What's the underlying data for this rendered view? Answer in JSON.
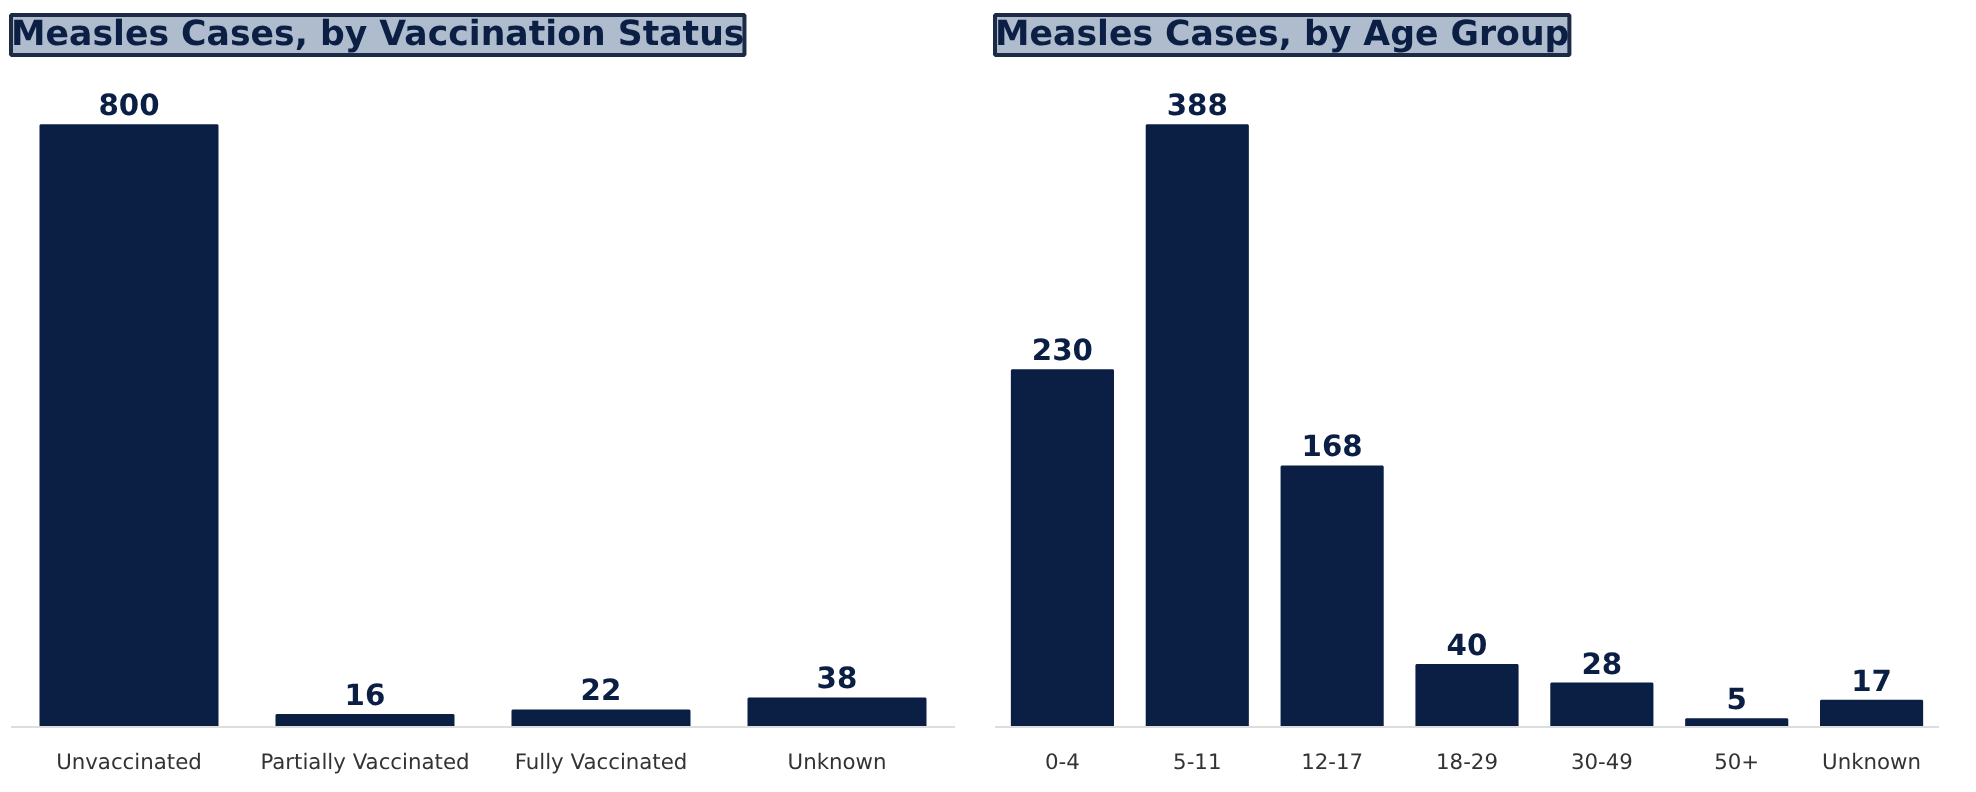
{
  "chart_data": [
    {
      "type": "bar",
      "title": "Measles Cases, by Vaccination Status",
      "categories": [
        "Unvaccinated",
        "Partially Vaccinated",
        "Fully Vaccinated",
        "Unknown"
      ],
      "values": [
        800,
        16,
        22,
        38
      ],
      "color": "#0b1f45",
      "data_labels": true
    },
    {
      "type": "bar",
      "title": "Measles Cases, by Age Group",
      "categories": [
        "0-4",
        "5-11",
        "12-17",
        "18-29",
        "30-49",
        "50+",
        "Unknown"
      ],
      "values": [
        230,
        388,
        168,
        40,
        28,
        5,
        17
      ],
      "color": "#0b1f45",
      "data_labels": true
    }
  ]
}
